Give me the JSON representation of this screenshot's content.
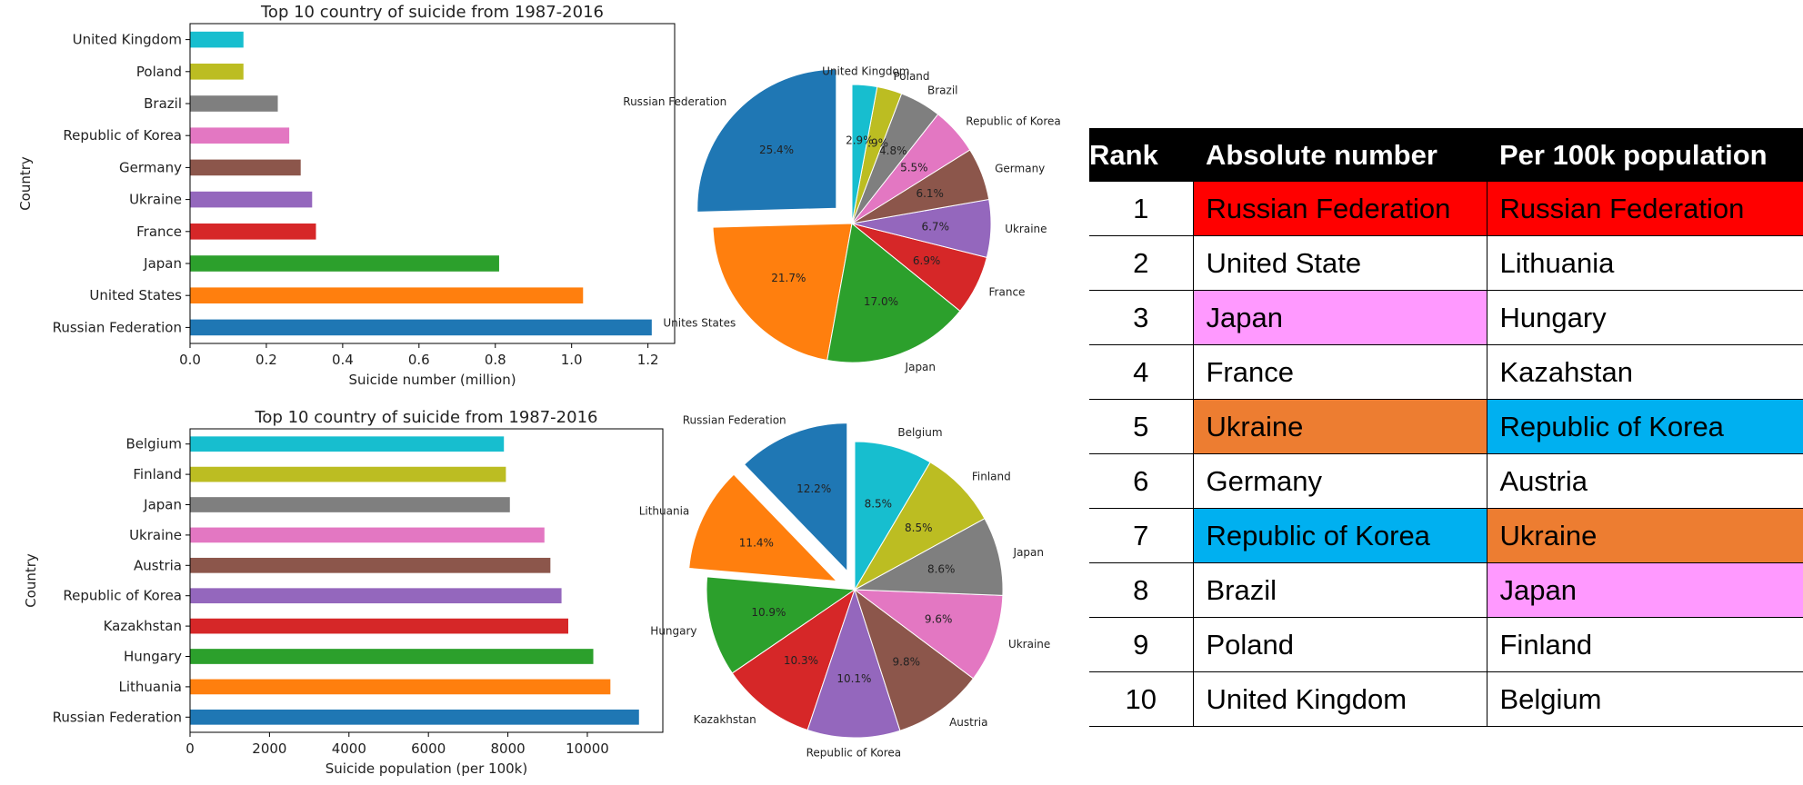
{
  "chart_data": [
    {
      "type": "bar",
      "orientation": "horizontal",
      "title": "Top 10 country of suicide from 1987-2016",
      "xlabel": "Suicide number (million)",
      "ylabel": "Country",
      "categories": [
        "Russian Federation",
        "United States",
        "Japan",
        "France",
        "Ukraine",
        "Germany",
        "Republic of Korea",
        "Brazil",
        "Poland",
        "United Kingdom"
      ],
      "values": [
        1.21,
        1.03,
        0.81,
        0.33,
        0.32,
        0.29,
        0.26,
        0.23,
        0.14,
        0.14
      ],
      "xlim": [
        0,
        1.27
      ],
      "xticks": [
        0.0,
        0.2,
        0.4,
        0.6,
        0.8,
        1.0,
        1.2
      ],
      "xtick_labels": [
        "0.0",
        "0.2",
        "0.4",
        "0.6",
        "0.8",
        "1.0",
        "1.2"
      ],
      "grid": false,
      "colors": [
        "#1f77b4",
        "#ff7f0e",
        "#2ca02c",
        "#d62728",
        "#9467bd",
        "#8c564b",
        "#e377c2",
        "#7f7f7f",
        "#bcbd22",
        "#17becf"
      ]
    },
    {
      "type": "pie",
      "labels": [
        "Russian Federation",
        "Unites States",
        "Japan",
        "France",
        "Ukraine",
        "Germany",
        "Republic of Korea",
        "Brazil",
        "Poland",
        "United Kingdom"
      ],
      "values": [
        25.4,
        21.7,
        17.0,
        6.9,
        6.7,
        6.1,
        5.5,
        4.8,
        2.9,
        2.9
      ],
      "value_labels": [
        "25.4%",
        "21.7%",
        "17.0%",
        "6.9%",
        "6.7%",
        "6.1%",
        "5.5%",
        "4.8%",
        "2.9%",
        "2.9%"
      ],
      "exploded": [
        "Russian Federation"
      ],
      "colors": [
        "#1f77b4",
        "#ff7f0e",
        "#2ca02c",
        "#d62728",
        "#9467bd",
        "#8c564b",
        "#e377c2",
        "#7f7f7f",
        "#bcbd22",
        "#17becf"
      ]
    },
    {
      "type": "bar",
      "orientation": "horizontal",
      "title": "Top 10 country of suicide from 1987-2016",
      "xlabel": "Suicide population (per 100k)",
      "ylabel": "Country",
      "categories": [
        "Russian Federation",
        "Lithuania",
        "Hungary",
        "Kazakhstan",
        "Republic of Korea",
        "Austria",
        "Ukraine",
        "Japan",
        "Finland",
        "Belgium"
      ],
      "values": [
        11300,
        10580,
        10150,
        9520,
        9350,
        9070,
        8920,
        8050,
        7950,
        7900
      ],
      "xlim": [
        0,
        11900
      ],
      "xticks": [
        0,
        2000,
        4000,
        6000,
        8000,
        10000
      ],
      "xtick_labels": [
        "0",
        "2000",
        "4000",
        "6000",
        "8000",
        "10000"
      ],
      "grid": false,
      "colors": [
        "#1f77b4",
        "#ff7f0e",
        "#2ca02c",
        "#d62728",
        "#9467bd",
        "#8c564b",
        "#e377c2",
        "#7f7f7f",
        "#bcbd22",
        "#17becf"
      ]
    },
    {
      "type": "pie",
      "labels": [
        "Russian Federation",
        "Lithuania",
        "Hungary",
        "Kazakhstan",
        "Republic of Korea",
        "Austria",
        "Ukraine",
        "Japan",
        "Finland",
        "Belgium"
      ],
      "values": [
        12.2,
        11.4,
        10.9,
        10.3,
        10.1,
        9.8,
        9.6,
        8.6,
        8.5,
        8.5
      ],
      "value_labels": [
        "12.2%",
        "11.4%",
        "10.9%",
        "10.3%",
        "10.1%",
        "9.8%",
        "9.6%",
        "8.6%",
        "8.5%",
        "8.5%"
      ],
      "exploded": [
        "Russian Federation",
        "Lithuania"
      ],
      "colors": [
        "#1f77b4",
        "#ff7f0e",
        "#2ca02c",
        "#d62728",
        "#9467bd",
        "#8c564b",
        "#e377c2",
        "#7f7f7f",
        "#bcbd22",
        "#17becf"
      ]
    }
  ],
  "table": {
    "headers": [
      "Rank",
      "Absolute number",
      "Per 100k population"
    ],
    "rows": [
      {
        "rank": "1",
        "absolute": "Russian Federation",
        "absolute_bg": "#ff0000",
        "per100k": "Russian Federation",
        "per100k_bg": "#ff0000"
      },
      {
        "rank": "2",
        "absolute": "United State",
        "absolute_bg": "",
        "per100k": "Lithuania",
        "per100k_bg": ""
      },
      {
        "rank": "3",
        "absolute": "Japan",
        "absolute_bg": "#ff99ff",
        "per100k": "Hungary",
        "per100k_bg": ""
      },
      {
        "rank": "4",
        "absolute": "France",
        "absolute_bg": "",
        "per100k": "Kazahstan",
        "per100k_bg": ""
      },
      {
        "rank": "5",
        "absolute": "Ukraine",
        "absolute_bg": "#ed7d31",
        "per100k": "Republic of Korea",
        "per100k_bg": "#00b0f0"
      },
      {
        "rank": "6",
        "absolute": "Germany",
        "absolute_bg": "",
        "per100k": "Austria",
        "per100k_bg": ""
      },
      {
        "rank": "7",
        "absolute": "Republic of Korea",
        "absolute_bg": "#00b0f0",
        "per100k": "Ukraine",
        "per100k_bg": "#ed7d31"
      },
      {
        "rank": "8",
        "absolute": "Brazil",
        "absolute_bg": "",
        "per100k": "Japan",
        "per100k_bg": "#ff99ff"
      },
      {
        "rank": "9",
        "absolute": "Poland",
        "absolute_bg": "",
        "per100k": "Finland",
        "per100k_bg": ""
      },
      {
        "rank": "10",
        "absolute": "United Kingdom",
        "absolute_bg": "",
        "per100k": "Belgium",
        "per100k_bg": ""
      }
    ]
  }
}
